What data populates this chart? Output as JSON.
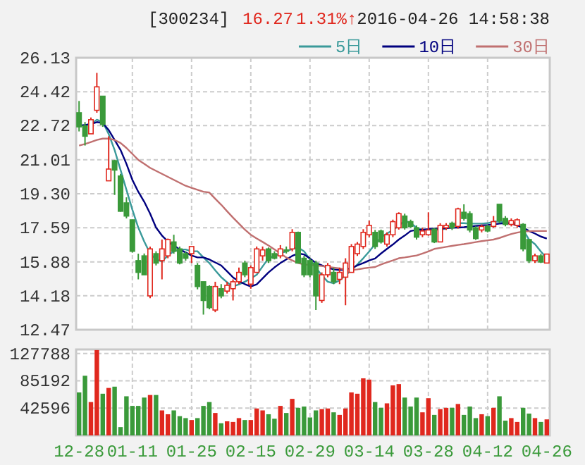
{
  "chart_data": [
    {
      "type": "candlestick",
      "title": "[300234]",
      "annotations": [
        "16.27",
        "1.31%↑",
        "2016-04-26 14:58:38"
      ],
      "ohlc": [
        [
          23.37,
          23.96,
          22.43,
          22.66
        ],
        [
          22.71,
          22.9,
          21.72,
          22.19
        ],
        [
          22.31,
          23.13,
          22.31,
          23.02
        ],
        [
          23.49,
          25.37,
          23.37,
          24.67
        ],
        [
          24.2,
          24.2,
          22.66,
          22.78
        ],
        [
          19.95,
          22.19,
          19.95,
          20.54
        ],
        [
          20.96,
          21.0,
          19.24,
          20.49
        ],
        [
          20.19,
          20.3,
          18.4,
          18.42
        ],
        [
          18.84,
          19.12,
          18.06,
          18.18
        ],
        [
          17.99,
          18.0,
          16.34,
          16.41
        ],
        [
          15.94,
          16.29,
          15.0,
          15.35
        ],
        [
          16.18,
          16.3,
          15.23,
          15.23
        ],
        [
          14.17,
          16.65,
          14.05,
          16.53
        ],
        [
          16.29,
          16.41,
          15.7,
          15.82
        ],
        [
          15.94,
          17.0,
          15.0,
          16.53
        ],
        [
          16.18,
          17.05,
          16.06,
          17.0
        ],
        [
          16.88,
          17.24,
          16.29,
          16.41
        ],
        [
          16.53,
          16.65,
          15.75,
          15.82
        ],
        [
          16.29,
          16.41,
          15.94,
          16.06
        ],
        [
          16.29,
          16.65,
          15.82,
          16.65
        ],
        [
          15.7,
          15.82,
          14.5,
          14.64
        ],
        [
          14.88,
          14.88,
          13.23,
          13.94
        ],
        [
          14.64,
          14.7,
          13.5,
          13.58
        ],
        [
          13.46,
          14.88,
          13.35,
          14.64
        ],
        [
          14.53,
          14.76,
          14.05,
          14.17
        ],
        [
          14.41,
          14.88,
          14.29,
          14.7
        ],
        [
          14.53,
          15.0,
          13.94,
          14.88
        ],
        [
          14.88,
          15.59,
          14.76,
          15.35
        ],
        [
          15.82,
          15.94,
          15.11,
          15.23
        ],
        [
          14.76,
          15.7,
          14.53,
          15.59
        ],
        [
          15.35,
          16.65,
          15.35,
          16.53
        ],
        [
          16.18,
          16.65,
          15.94,
          16.48
        ],
        [
          16.53,
          16.6,
          15.82,
          15.94
        ],
        [
          16.29,
          16.41,
          16.0,
          16.06
        ],
        [
          16.18,
          16.72,
          16.06,
          16.53
        ],
        [
          16.48,
          16.65,
          16.3,
          16.41
        ],
        [
          16.53,
          17.52,
          16.41,
          17.36
        ],
        [
          17.36,
          17.4,
          15.82,
          15.82
        ],
        [
          16.06,
          16.18,
          15.11,
          15.23
        ],
        [
          15.94,
          16.06,
          15.11,
          15.23
        ],
        [
          15.82,
          15.94,
          13.46,
          14.17
        ],
        [
          13.94,
          15.35,
          13.82,
          15.23
        ],
        [
          15.23,
          15.82,
          15.11,
          15.7
        ],
        [
          15.35,
          15.59,
          14.76,
          14.88
        ],
        [
          15.0,
          15.59,
          14.76,
          15.35
        ],
        [
          15.11,
          16.06,
          13.7,
          15.82
        ],
        [
          15.35,
          16.77,
          15.35,
          16.65
        ],
        [
          16.29,
          16.88,
          16.18,
          16.77
        ],
        [
          16.65,
          17.52,
          16.53,
          17.36
        ],
        [
          17.24,
          17.95,
          17.12,
          17.71
        ],
        [
          17.36,
          17.48,
          16.53,
          16.65
        ],
        [
          17.43,
          17.5,
          16.8,
          16.88
        ],
        [
          16.77,
          17.36,
          16.65,
          17.24
        ],
        [
          17.24,
          18.0,
          17.12,
          17.9
        ],
        [
          17.59,
          18.37,
          17.5,
          18.3
        ],
        [
          18.18,
          18.3,
          17.5,
          17.59
        ],
        [
          17.9,
          18.0,
          17.59,
          17.66
        ],
        [
          17.59,
          17.71,
          17.0,
          17.12
        ],
        [
          17.24,
          17.59,
          17.12,
          17.43
        ],
        [
          17.24,
          18.37,
          17.19,
          17.48
        ],
        [
          17.52,
          17.59,
          16.82,
          16.88
        ],
        [
          16.88,
          17.82,
          16.88,
          17.71
        ],
        [
          17.59,
          17.82,
          17.48,
          17.71
        ],
        [
          17.82,
          17.9,
          17.48,
          17.59
        ],
        [
          17.66,
          18.6,
          17.55,
          18.54
        ],
        [
          18.37,
          18.77,
          17.95,
          18.06
        ],
        [
          18.3,
          18.42,
          17.36,
          17.48
        ],
        [
          17.59,
          17.66,
          16.98,
          17.05
        ],
        [
          17.48,
          17.75,
          17.36,
          17.66
        ],
        [
          17.66,
          17.75,
          17.36,
          17.43
        ],
        [
          17.66,
          18.18,
          17.59,
          17.9
        ],
        [
          18.77,
          18.77,
          17.82,
          17.95
        ],
        [
          18.06,
          18.18,
          17.66,
          17.76
        ],
        [
          17.76,
          18.06,
          17.66,
          17.95
        ],
        [
          17.71,
          18.06,
          17.59,
          17.99
        ],
        [
          17.76,
          17.82,
          16.41,
          16.53
        ],
        [
          17.0,
          17.0,
          15.82,
          15.94
        ],
        [
          15.94,
          16.29,
          15.82,
          16.18
        ],
        [
          16.18,
          16.29,
          15.82,
          15.87
        ],
        [
          15.82,
          16.29,
          15.82,
          16.27
        ]
      ],
      "series": [
        {
          "name": "5日",
          "type": "line",
          "color": "#3a9a9a",
          "values": [
            22.72,
            22.75,
            22.8,
            23.02,
            22.9,
            22.3,
            21.5,
            20.5,
            19.5,
            18.5,
            17.6,
            16.9,
            16.3,
            16.0,
            15.9,
            16.2,
            16.41,
            16.5,
            16.5,
            16.41,
            16.41,
            16.1,
            15.82,
            15.45,
            15.11,
            14.85,
            14.64,
            14.75,
            14.88,
            15.05,
            15.23,
            15.65,
            16.06,
            16.18,
            16.3,
            16.41,
            16.53,
            16.6,
            16.41,
            16.0,
            15.59,
            15.2,
            14.88,
            14.8,
            14.95,
            15.2,
            15.47,
            15.75,
            16.06,
            16.4,
            16.77,
            17.12,
            17.3,
            17.48,
            17.7,
            17.95,
            17.82,
            17.6,
            17.5,
            17.48,
            17.48,
            17.5,
            17.55,
            17.66,
            17.82,
            17.82,
            17.8,
            17.8,
            17.8,
            17.82,
            17.9,
            17.9,
            17.88,
            17.85,
            17.82,
            17.48,
            17.0,
            16.77,
            16.4,
            16.06
          ]
        },
        {
          "name": "10日",
          "type": "line",
          "color": "#00007f",
          "values": [
            22.72,
            22.75,
            22.8,
            22.9,
            22.85,
            22.5,
            22.0,
            21.5,
            20.8,
            20.0,
            19.4,
            18.9,
            18.3,
            17.6,
            17.2,
            16.9,
            16.7,
            16.5,
            16.35,
            16.2,
            16.1,
            16.1,
            16.0,
            15.85,
            15.7,
            15.4,
            15.1,
            14.9,
            14.76,
            14.64,
            14.75,
            15.05,
            15.35,
            15.6,
            15.82,
            16.0,
            16.18,
            16.3,
            16.25,
            16.05,
            15.82,
            15.7,
            15.59,
            15.5,
            15.47,
            15.5,
            15.55,
            15.7,
            15.82,
            15.95,
            16.05,
            16.3,
            16.53,
            16.75,
            17.0,
            17.2,
            17.43,
            17.48,
            17.5,
            17.52,
            17.55,
            17.55,
            17.57,
            17.59,
            17.6,
            17.62,
            17.65,
            17.68,
            17.71,
            17.73,
            17.76,
            17.8,
            17.82,
            17.8,
            17.71,
            17.6,
            17.43,
            17.3,
            17.15,
            17.05
          ]
        },
        {
          "name": "30日",
          "type": "line",
          "color": "#c07070",
          "values": [
            21.72,
            21.8,
            21.9,
            22.0,
            22.07,
            22.07,
            22.0,
            21.85,
            21.6,
            21.3,
            21.0,
            20.8,
            20.6,
            20.45,
            20.3,
            20.15,
            20.0,
            19.85,
            19.7,
            19.6,
            19.5,
            19.4,
            19.36,
            19.05,
            18.75,
            18.42,
            18.1,
            17.8,
            17.5,
            17.24,
            17.05,
            16.88,
            16.7,
            16.5,
            16.3,
            16.1,
            15.95,
            15.82,
            15.75,
            15.72,
            15.7,
            15.67,
            15.63,
            15.59,
            15.55,
            15.5,
            15.47,
            15.5,
            15.55,
            15.59,
            15.62,
            15.75,
            15.85,
            15.95,
            16.06,
            16.1,
            16.15,
            16.2,
            16.3,
            16.4,
            16.53,
            16.58,
            16.63,
            16.68,
            16.73,
            16.77,
            16.82,
            16.87,
            16.92,
            16.96,
            17.0,
            17.08,
            17.18,
            17.28,
            17.35,
            17.4,
            17.42,
            17.43,
            17.43,
            17.43
          ]
        }
      ],
      "ylim": [
        12.47,
        26.13
      ],
      "yticks": [
        12.47,
        14.18,
        15.88,
        17.59,
        {
          "value": 19.3,
          "label": "19.30"
        },
        21.01,
        22.72,
        24.42,
        26.13
      ],
      "grid": true,
      "legend": "top right",
      "tick_labels": "y"
    },
    {
      "type": "bar",
      "categories": [
        "12-28",
        null,
        null,
        null,
        null,
        null,
        null,
        null,
        null,
        "01-11",
        null,
        null,
        null,
        null,
        null,
        null,
        null,
        null,
        null,
        "01-25",
        null,
        null,
        null,
        null,
        null,
        null,
        null,
        null,
        null,
        "02-15",
        null,
        null,
        null,
        null,
        null,
        null,
        null,
        null,
        null,
        "02-29",
        null,
        null,
        null,
        null,
        null,
        null,
        null,
        null,
        null,
        "03-14",
        null,
        null,
        null,
        null,
        null,
        null,
        null,
        null,
        null,
        "03-28",
        null,
        null,
        null,
        null,
        null,
        null,
        null,
        null,
        null,
        "04-12",
        null,
        null,
        null,
        null,
        null,
        null,
        null,
        null,
        null,
        "04-26"
      ],
      "values": [
        67000,
        93000,
        52000,
        133000,
        65000,
        74000,
        76000,
        13000,
        61000,
        46000,
        46000,
        59000,
        63000,
        63000,
        39000,
        33000,
        39000,
        30000,
        27000,
        24000,
        27000,
        46000,
        52000,
        35000,
        19000,
        22000,
        21000,
        27000,
        24000,
        24000,
        42000,
        39000,
        33000,
        26000,
        46000,
        35000,
        57000,
        43000,
        45000,
        28000,
        39000,
        41000,
        42000,
        36000,
        32000,
        42000,
        67000,
        65000,
        89000,
        87000,
        52000,
        43000,
        50000,
        78000,
        80000,
        59000,
        45000,
        59000,
        36000,
        58000,
        32000,
        41000,
        43000,
        43000,
        49000,
        32000,
        45000,
        27000,
        33000,
        30000,
        43000,
        61000,
        23000,
        27000,
        21000,
        43000,
        34000,
        27000,
        21000,
        25000
      ],
      "colors": [
        "#3a9a3a",
        "#3a9a3a",
        "#e0281e",
        "#e0281e",
        "#3a9a3a",
        "#e0281e",
        "#3a9a3a",
        "#3a9a3a",
        "#3a9a3a",
        "#3a9a3a",
        "#3a9a3a",
        "#3a9a3a",
        "#e0281e",
        "#3a9a3a",
        "#e0281e",
        "#e0281e",
        "#3a9a3a",
        "#3a9a3a",
        "#3a9a3a",
        "#e0281e",
        "#3a9a3a",
        "#3a9a3a",
        "#3a9a3a",
        "#e0281e",
        "#3a9a3a",
        "#e0281e",
        "#e0281e",
        "#e0281e",
        "#3a9a3a",
        "#e0281e",
        "#e0281e",
        "#e0281e",
        "#3a9a3a",
        "#3a9a3a",
        "#e0281e",
        "#3a9a3a",
        "#e0281e",
        "#3a9a3a",
        "#3a9a3a",
        "#3a9a3a",
        "#3a9a3a",
        "#e0281e",
        "#e0281e",
        "#3a9a3a",
        "#e0281e",
        "#e0281e",
        "#e0281e",
        "#e0281e",
        "#e0281e",
        "#e0281e",
        "#3a9a3a",
        "#3a9a3a",
        "#e0281e",
        "#e0281e",
        "#e0281e",
        "#3a9a3a",
        "#3a9a3a",
        "#3a9a3a",
        "#e0281e",
        "#e0281e",
        "#3a9a3a",
        "#e0281e",
        "#e0281e",
        "#3a9a3a",
        "#e0281e",
        "#3a9a3a",
        "#3a9a3a",
        "#3a9a3a",
        "#e0281e",
        "#3a9a3a",
        "#e0281e",
        "#3a9a3a",
        "#3a9a3a",
        "#e0281e",
        "#e0281e",
        "#3a9a3a",
        "#3a9a3a",
        "#e0281e",
        "#3a9a3a",
        "#e0281e"
      ],
      "ylim": [
        0,
        134000
      ],
      "yticks": [
        42596,
        85192,
        127788
      ],
      "grid": true
    }
  ]
}
